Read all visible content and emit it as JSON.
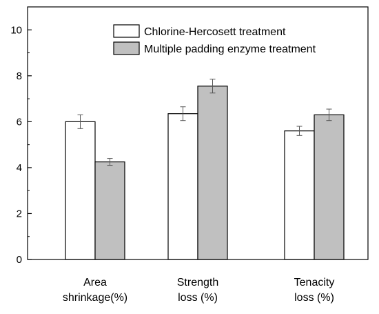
{
  "chart_data": {
    "type": "bar",
    "title": "",
    "xlabel": "",
    "ylabel": "",
    "ylim": [
      0,
      11
    ],
    "yticks": [
      0,
      2,
      4,
      6,
      8,
      10
    ],
    "grid": false,
    "legend_position": "top-right",
    "categories": [
      [
        "Area",
        "shrinkage(%)"
      ],
      [
        "Strength",
        "loss (%)"
      ],
      [
        "Tenacity",
        "loss (%)"
      ]
    ],
    "series": [
      {
        "name": "Chlorine-Hercosett treatment",
        "color": "#ffffff",
        "values": [
          6.0,
          6.35,
          5.6
        ],
        "errors": [
          0.3,
          0.3,
          0.2
        ]
      },
      {
        "name": "Multiple padding enzyme treatment",
        "color": "#c0c0c0",
        "values": [
          4.25,
          7.55,
          6.3
        ],
        "errors": [
          0.15,
          0.3,
          0.25
        ]
      }
    ]
  }
}
